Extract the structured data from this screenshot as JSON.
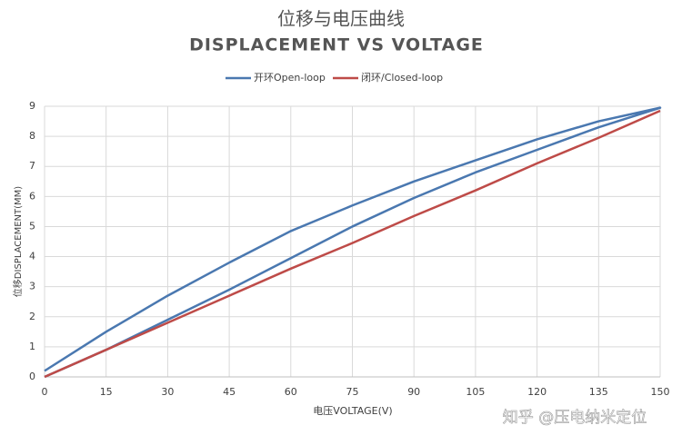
{
  "chart_data": {
    "type": "line",
    "title": "位移与电压曲线",
    "subtitle": "DISPLACEMENT VS VOLTAGE",
    "x_label": "电压VOLTAGE(V)",
    "y_label": "位移DISPLACEMENT(MM)",
    "xlim": [
      0,
      150
    ],
    "xticks": [
      0,
      15,
      30,
      45,
      60,
      75,
      90,
      105,
      120,
      135,
      150
    ],
    "ylim": [
      0,
      9
    ],
    "yticks": [
      0,
      1,
      2,
      3,
      4,
      5,
      6,
      7,
      8,
      9
    ],
    "grid": true,
    "legend": "top",
    "series": [
      {
        "name": "开环Open-loop",
        "color": "#4a78b0",
        "x": [
          0,
          15,
          30,
          45,
          60,
          75,
          90,
          105,
          120,
          135,
          150,
          135,
          120,
          105,
          90,
          75,
          60,
          45,
          30,
          15,
          0
        ],
        "values": [
          0,
          0.9,
          1.9,
          2.9,
          3.95,
          5.0,
          5.95,
          6.8,
          7.55,
          8.3,
          8.95,
          8.5,
          7.9,
          7.2,
          6.5,
          5.7,
          4.85,
          3.8,
          2.7,
          1.5,
          0.2
        ]
      },
      {
        "name": "闭环/Closed-loop",
        "color": "#be4b48",
        "x": [
          0,
          15,
          30,
          45,
          60,
          75,
          90,
          105,
          120,
          135,
          150
        ],
        "values": [
          0,
          0.9,
          1.8,
          2.7,
          3.6,
          4.45,
          5.35,
          6.2,
          7.1,
          7.95,
          8.85
        ]
      }
    ]
  },
  "watermark": "知乎 @压电纳米定位"
}
